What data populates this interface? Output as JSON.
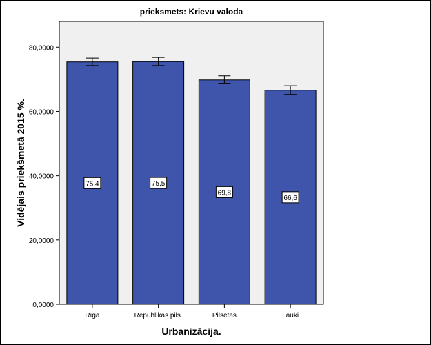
{
  "chart_data": {
    "type": "bar",
    "title": "prieksmets: Krievu valoda",
    "xlabel": "Urbanizācija.",
    "ylabel": "Vidējais priekšmetā 2015 %.",
    "categories": [
      "Rīga",
      "Republikas pils.",
      "Pilsētas",
      "Lauki"
    ],
    "values": [
      75.4,
      75.5,
      69.8,
      66.6
    ],
    "data_labels": [
      "75,4",
      "75,5",
      "69,8",
      "66,6"
    ],
    "error_low": [
      74.3,
      74.3,
      68.6,
      65.3
    ],
    "error_high": [
      76.6,
      76.8,
      71.1,
      68.0
    ],
    "ylim": [
      0,
      88
    ],
    "yticks": [
      0,
      20,
      40,
      60,
      80
    ],
    "ytick_labels": [
      "0,0000",
      "20,0000",
      "40,0000",
      "60,0000",
      "80,0000"
    ],
    "grid": false,
    "legend": "none",
    "colors": {
      "bar_fill": "#3f55ac",
      "bar_stroke": "#000000",
      "plot_bg": "#f0f0f0",
      "axis": "#000000"
    }
  }
}
